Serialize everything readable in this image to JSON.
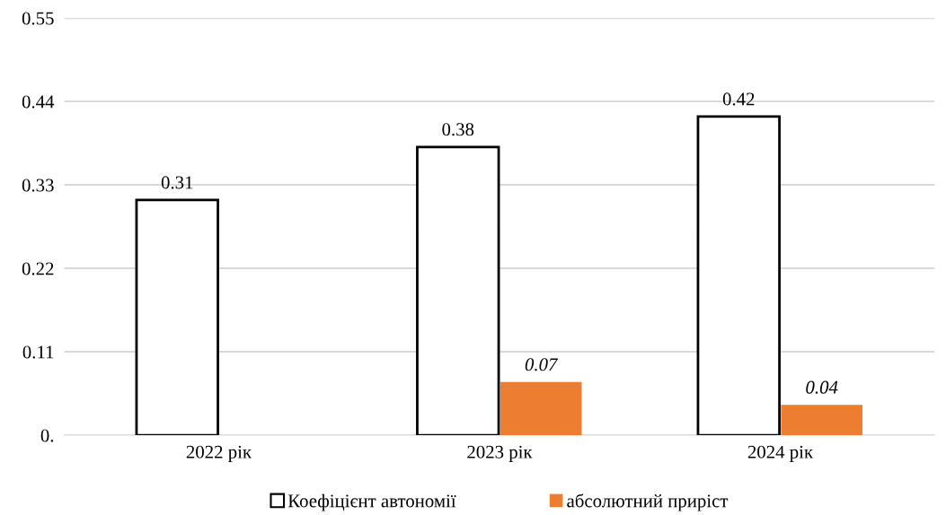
{
  "chart_data": {
    "type": "bar",
    "categories": [
      "2022 рік",
      "2023 рік",
      "2024 рік"
    ],
    "series": [
      {
        "name": "Коефіцієнт автономії",
        "color": "#ffffff",
        "values": [
          0.31,
          0.38,
          0.42
        ]
      },
      {
        "name": "абсолютний приріст",
        "color": "#ed7d31",
        "values": [
          null,
          0.07,
          0.04
        ]
      }
    ],
    "ylim": [
      0,
      0.55
    ],
    "yticks": [
      {
        "value": 0,
        "label": "0."
      },
      0.11,
      0.22,
      0.33,
      0.44,
      0.55
    ],
    "grid": "y",
    "legend": "bottom",
    "data_labels": true
  }
}
